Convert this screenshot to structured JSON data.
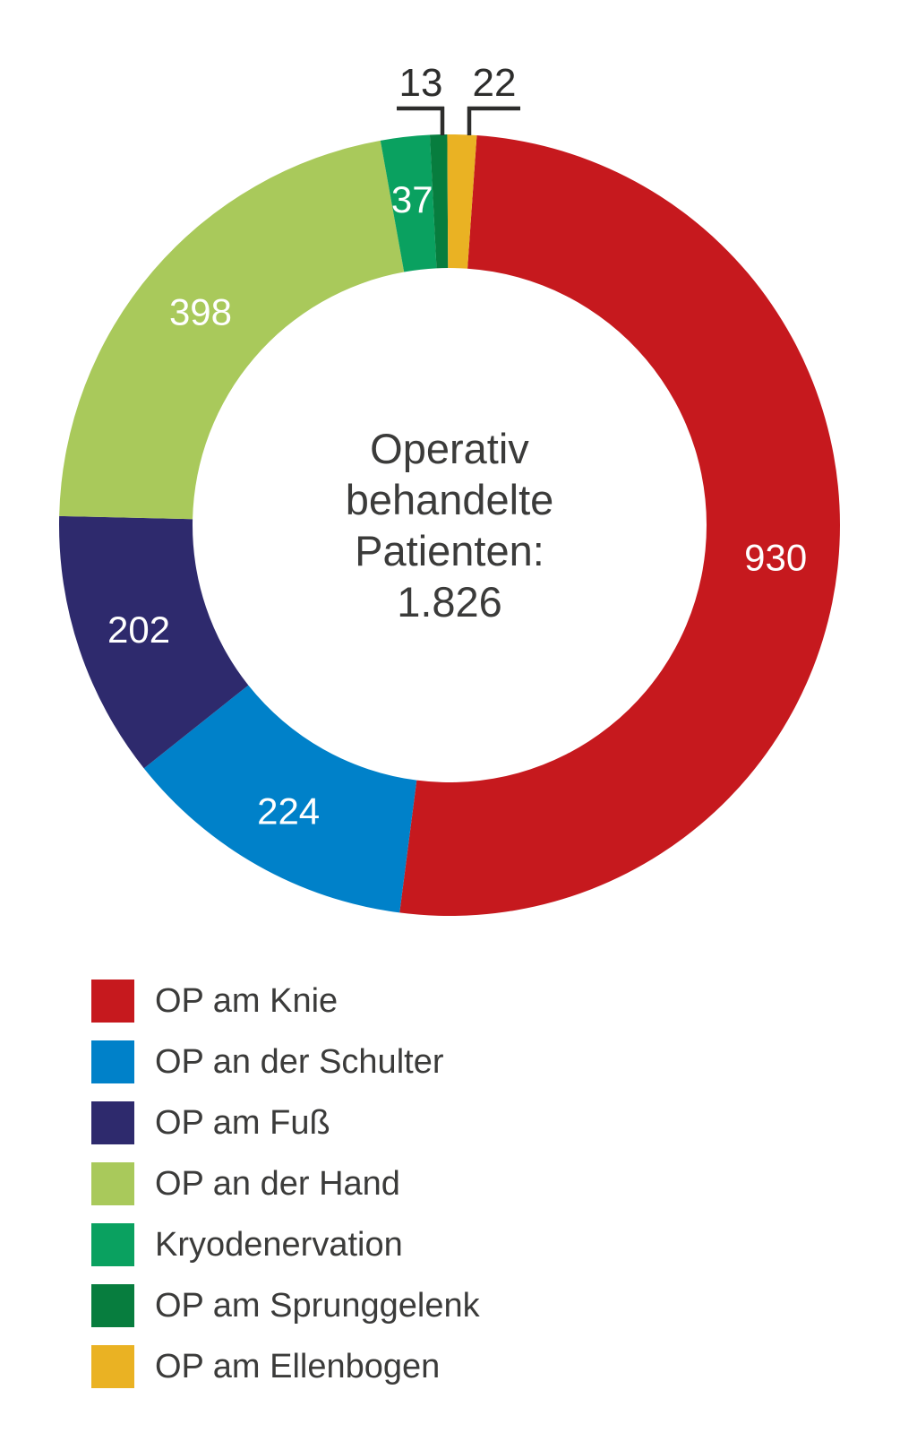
{
  "chart_data": {
    "type": "pie",
    "donut": true,
    "title": "Operativ behandelte Patienten: 1.826",
    "center_label_lines": [
      "Operativ",
      "behandelte",
      "Patienten:",
      "1.826"
    ],
    "total": 1826,
    "total_label": "1.826",
    "direction": "clockwise",
    "start_angle_deg": 4,
    "legend_position": "bottom-left",
    "segments": [
      {
        "label": "OP am Knie",
        "value": 930,
        "value_label": "930",
        "color": "#c6191e",
        "label_placement": "inside"
      },
      {
        "label": "OP an der Schulter",
        "value": 224,
        "value_label": "224",
        "color": "#0081c9",
        "label_placement": "inside"
      },
      {
        "label": "OP am Fuß",
        "value": 202,
        "value_label": "202",
        "color": "#2e2a6d",
        "label_placement": "inside"
      },
      {
        "label": "OP an der Hand",
        "value": 398,
        "value_label": "398",
        "color": "#a9c95b",
        "label_placement": "inside"
      },
      {
        "label": "Kryodenervation",
        "value": 37,
        "value_label": "37",
        "color": "#0aa160",
        "label_placement": "inside"
      },
      {
        "label": "OP am Sprunggelenk",
        "value": 13,
        "value_label": "13",
        "color": "#077d3e",
        "label_placement": "callout"
      },
      {
        "label": "OP am Ellenbogen",
        "value": 22,
        "value_label": "22",
        "color": "#eab223",
        "label_placement": "callout"
      }
    ]
  }
}
